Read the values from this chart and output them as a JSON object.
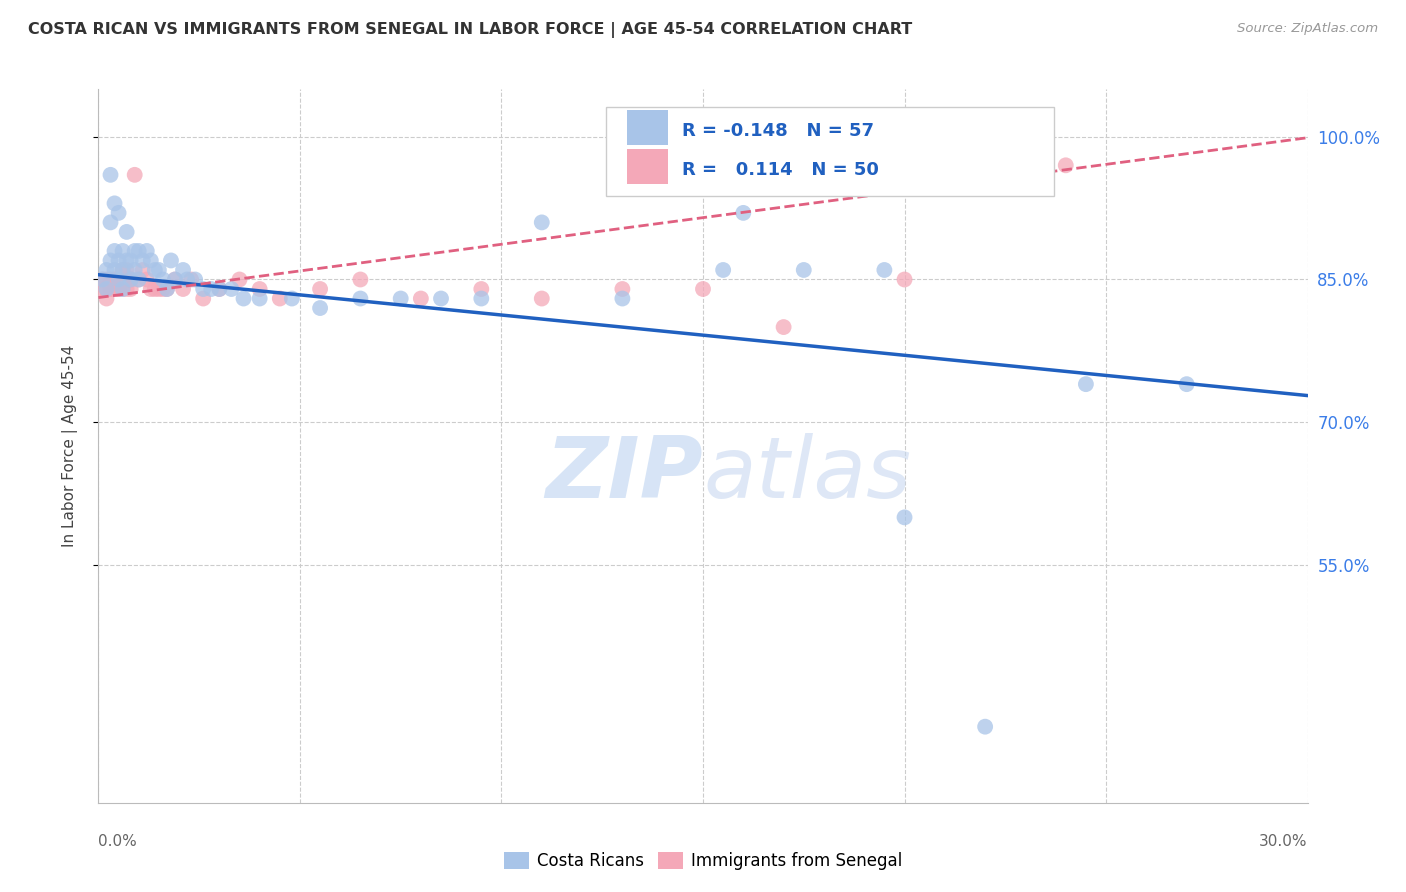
{
  "title": "COSTA RICAN VS IMMIGRANTS FROM SENEGAL IN LABOR FORCE | AGE 45-54 CORRELATION CHART",
  "source": "Source: ZipAtlas.com",
  "ylabel": "In Labor Force | Age 45-54",
  "yticks": [
    "100.0%",
    "85.0%",
    "70.0%",
    "55.0%"
  ],
  "ytick_vals": [
    1.0,
    0.85,
    0.7,
    0.55
  ],
  "xlim": [
    0.0,
    0.3
  ],
  "ylim": [
    0.3,
    1.05
  ],
  "blue_r": -0.148,
  "blue_n": 57,
  "pink_r": 0.114,
  "pink_n": 50,
  "blue_color": "#a8c4e8",
  "pink_color": "#f4a8b8",
  "blue_line_color": "#2060c0",
  "pink_line_color": "#e06080",
  "legend_r_color": "#2060c0",
  "watermark_color": "#d0e0f5",
  "blue_scatter_x": [
    0.001,
    0.002,
    0.002,
    0.003,
    0.003,
    0.003,
    0.004,
    0.004,
    0.004,
    0.005,
    0.005,
    0.005,
    0.006,
    0.006,
    0.006,
    0.007,
    0.007,
    0.008,
    0.008,
    0.009,
    0.009,
    0.01,
    0.01,
    0.011,
    0.012,
    0.013,
    0.014,
    0.015,
    0.016,
    0.017,
    0.018,
    0.019,
    0.021,
    0.022,
    0.024,
    0.026,
    0.028,
    0.03,
    0.033,
    0.036,
    0.04,
    0.048,
    0.055,
    0.065,
    0.075,
    0.085,
    0.095,
    0.11,
    0.13,
    0.155,
    0.175,
    0.195,
    0.22,
    0.245,
    0.16,
    0.2,
    0.27
  ],
  "blue_scatter_y": [
    0.85,
    0.86,
    0.84,
    0.87,
    0.96,
    0.91,
    0.93,
    0.88,
    0.86,
    0.87,
    0.92,
    0.85,
    0.88,
    0.86,
    0.84,
    0.9,
    0.87,
    0.87,
    0.85,
    0.88,
    0.86,
    0.88,
    0.85,
    0.87,
    0.88,
    0.87,
    0.86,
    0.86,
    0.85,
    0.84,
    0.87,
    0.85,
    0.86,
    0.85,
    0.85,
    0.84,
    0.84,
    0.84,
    0.84,
    0.83,
    0.83,
    0.83,
    0.82,
    0.83,
    0.83,
    0.83,
    0.83,
    0.91,
    0.83,
    0.86,
    0.86,
    0.86,
    0.38,
    0.74,
    0.92,
    0.6,
    0.74
  ],
  "pink_scatter_x": [
    0.001,
    0.001,
    0.002,
    0.002,
    0.002,
    0.003,
    0.003,
    0.003,
    0.003,
    0.004,
    0.004,
    0.004,
    0.005,
    0.005,
    0.005,
    0.006,
    0.006,
    0.007,
    0.007,
    0.007,
    0.008,
    0.008,
    0.008,
    0.009,
    0.01,
    0.011,
    0.012,
    0.013,
    0.014,
    0.015,
    0.016,
    0.017,
    0.019,
    0.021,
    0.023,
    0.026,
    0.03,
    0.035,
    0.04,
    0.045,
    0.055,
    0.065,
    0.08,
    0.095,
    0.11,
    0.13,
    0.15,
    0.17,
    0.2,
    0.24
  ],
  "pink_scatter_y": [
    0.84,
    0.85,
    0.83,
    0.84,
    0.85,
    0.84,
    0.85,
    0.85,
    0.84,
    0.85,
    0.84,
    0.85,
    0.84,
    0.85,
    0.84,
    0.86,
    0.84,
    0.86,
    0.84,
    0.85,
    0.85,
    0.84,
    0.85,
    0.96,
    0.85,
    0.86,
    0.85,
    0.84,
    0.84,
    0.84,
    0.84,
    0.84,
    0.85,
    0.84,
    0.85,
    0.83,
    0.84,
    0.85,
    0.84,
    0.83,
    0.84,
    0.85,
    0.83,
    0.84,
    0.83,
    0.84,
    0.84,
    0.8,
    0.85,
    0.97
  ],
  "blue_line_x": [
    0.0,
    0.3
  ],
  "blue_line_y": [
    0.855,
    0.728
  ],
  "pink_line_x": [
    0.0,
    0.3
  ],
  "pink_line_y": [
    0.831,
    0.999
  ]
}
